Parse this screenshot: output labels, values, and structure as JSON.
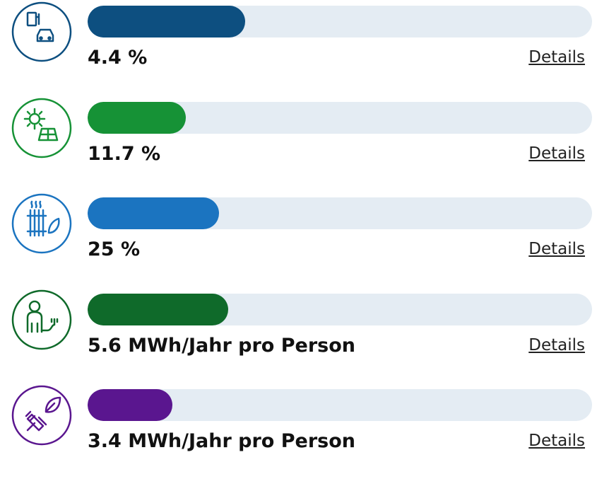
{
  "items": [
    {
      "label": "4.4 %",
      "link": "Details",
      "progress": 31.2,
      "color": "#0d4f80",
      "icon": "car"
    },
    {
      "label": "11.7 %",
      "link": "Details",
      "progress": 19.5,
      "color": "#169236",
      "icon": "solar"
    },
    {
      "label": "25 %",
      "link": "Details",
      "progress": 26,
      "color": "#1b74c0",
      "icon": "heat"
    },
    {
      "label": "5.6 MWh/Jahr pro Person",
      "link": "Details",
      "progress": 27.9,
      "color": "#0f6a2a",
      "icon": "person"
    },
    {
      "label": "3.4 MWh/Jahr pro Person",
      "link": "Details",
      "progress": 16.8,
      "color": "#5a168f",
      "icon": "plug"
    }
  ]
}
